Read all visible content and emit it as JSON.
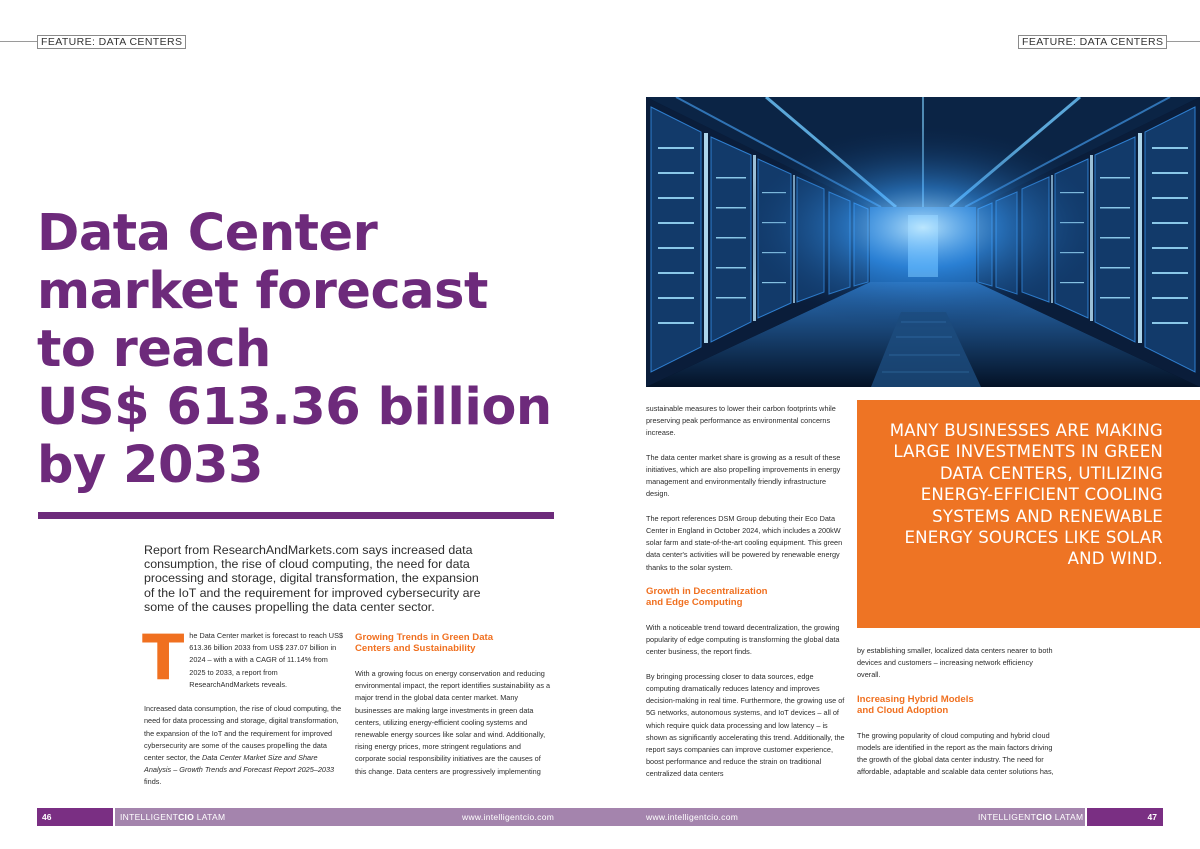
{
  "header": {
    "left_tag": "FEATURE: DATA CENTERS",
    "right_tag": "FEATURE: DATA CENTERS"
  },
  "headline": {
    "line1": "Data Center",
    "line2": "market forecast",
    "line3": "to reach",
    "line4": "US$ 613.36 billion",
    "line5": "by 2033"
  },
  "standfirst": "Report from ResearchAndMarkets.com says increased data consumption, the rise of cloud computing, the need for data processing and storage, digital transformation, the expansion of the IoT and the requirement for improved cybersecurity are some of the causes propelling the data center sector.",
  "col1": {
    "dropcap": "T",
    "intro": "he Data Center market is forecast to reach US$ 613.36 billion 2033 from US$ 237.07 billion in 2024 – with a with a CAGR of 11.14% from 2025 to 2033, a report from ResearchAndMarkets reveals.",
    "p2_start": "Increased data consumption, the rise of cloud computing, the need for data processing and storage, digital transformation, the expansion of the IoT and the requirement for improved cybersecurity are some of the causes propelling the data center sector, the ",
    "p2_italic": "Data Center Market Size and Share Analysis – Growth Trends and Forecast Report 2025–2033",
    "p2_end": " finds."
  },
  "col2": {
    "heading_line1": "Growing Trends in Green Data",
    "heading_line2": "Centers and Sustainability",
    "p1": "With a growing focus on energy conservation and reducing environmental impact, the report identifies sustainability as a major trend in the global data center market. Many businesses are making large investments in green data centers, utilizing energy-efficient cooling systems and renewable energy sources like solar and wind. Additionally, rising energy prices, more stringent regulations and corporate social responsibility initiatives are the causes of this change. Data centers are progressively implementing"
  },
  "col3": {
    "p1": "sustainable measures to lower their carbon footprints while preserving peak performance as environmental concerns increase.",
    "p2": "The data center market share is growing as a result of these initiatives, which are also propelling improvements in energy management and environmentally friendly infrastructure design.",
    "p3": "The report references DSM Group debuting their Eco Data Center in England in October 2024, which includes a 200kW solar farm and state-of-the-art cooling equipment. This green data center's activities will be powered by renewable energy thanks to the solar system.",
    "heading_line1": "Growth in Decentralization",
    "heading_line2": "and Edge Computing",
    "p4": "With a noticeable trend toward decentralization, the growing popularity of edge computing is transforming the global data center business, the report finds.",
    "p5": "By bringing processing closer to data sources, edge computing dramatically reduces latency and improves decision-making in real time. Furthermore, the growing use of 5G networks, autonomous systems, and IoT devices – all of which require quick data processing and low latency – is shown as significantly accelerating this trend. Additionally, the report says companies can improve customer experience, boost performance and reduce the strain on traditional centralized data centers"
  },
  "pull_quote": "MANY BUSINESSES ARE MAKING LARGE INVESTMENTS IN GREEN DATA CENTERS, UTILIZING ENERGY-EFFICIENT COOLING SYSTEMS AND RENEWABLE ENERGY SOURCES LIKE SOLAR AND WIND.",
  "col4": {
    "p1": "by establishing smaller, localized data centers nearer to both devices and customers – increasing network efficiency overall.",
    "heading_line1": "Increasing Hybrid Models",
    "heading_line2": "and Cloud Adoption",
    "p2": "The growing popularity of cloud computing and hybrid cloud models are identified in the report as the main factors driving the growth of the global data center industry. The need for affordable, adaptable and scalable data center solutions has,"
  },
  "footer": {
    "left_page": "46",
    "left_brand_light": "INTELLIGENT",
    "left_brand_bold": "CIO",
    "left_brand_suffix": " LATAM",
    "left_url": "www.intelligentcio.com",
    "right_url": "www.intelligentcio.com",
    "right_brand_light": "INTELLIGENT",
    "right_brand_bold": "CIO",
    "right_brand_suffix": " LATAM",
    "right_page": "47"
  },
  "colors": {
    "purple": "#6d2a7b",
    "orange": "#ee7424",
    "footer_mauve": "#a484ad"
  },
  "image": {
    "subject": "data-center-server-aisle-photo"
  }
}
